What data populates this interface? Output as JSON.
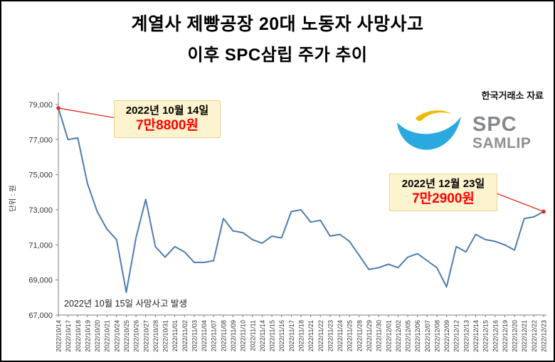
{
  "title": {
    "line1": "계열사 제빵공장 20대 노동자 사망사고",
    "line2": "이후 SPC삼립 주가 추이"
  },
  "source_label": "한국거래소 자료",
  "y_axis_unit": "단위 : 원",
  "event_note": "2022년 10월 15일 사망사고 발생",
  "logo": {
    "line1": "SPC",
    "line2": "SAMLIP"
  },
  "annotations": [
    {
      "date": "2022년 10월 14일",
      "price": "7만8800원",
      "target_index": 0
    },
    {
      "date": "2022년 12월 23일",
      "price": "7만2900원",
      "target_index": 50
    }
  ],
  "colors": {
    "line": "#4e7cb1",
    "arrow_red": "#e02a1f",
    "price_red": "#ff0000",
    "annotation_bg": "#fdf3cf",
    "annotation_border": "#e6d294",
    "axis": "#7f7f7f",
    "tick_text": "#333333",
    "logo_blue": "#2aa9e0",
    "logo_yellow": "#f0b800",
    "logo_gray": "#85888b"
  },
  "chart_data": {
    "type": "line",
    "title": "SPC삼립 주가 추이",
    "xlabel": "",
    "ylabel": "단위 : 원",
    "ylim": [
      67000,
      79000
    ],
    "yticks": [
      67000,
      69000,
      71000,
      73000,
      75000,
      77000,
      79000
    ],
    "grid": false,
    "legend": false,
    "line_color": "#4e7cb1",
    "x": [
      "2022/10/14",
      "2022/10/17",
      "2022/10/18",
      "2022/10/19",
      "2022/10/20",
      "2022/10/21",
      "2022/10/24",
      "2022/10/25",
      "2022/10/26",
      "2022/10/27",
      "2022/10/28",
      "2022/10/31",
      "2022/11/01",
      "2022/11/02",
      "2022/11/03",
      "2022/11/04",
      "2022/11/07",
      "2022/11/08",
      "2022/11/09",
      "2022/11/10",
      "2022/11/11",
      "2022/11/14",
      "2022/11/15",
      "2022/11/16",
      "2022/11/17",
      "2022/11/18",
      "2022/11/21",
      "2022/11/22",
      "2022/11/23",
      "2022/11/24",
      "2022/11/25",
      "2022/11/28",
      "2022/11/29",
      "2022/11/30",
      "2022/12/01",
      "2022/12/02",
      "2022/12/05",
      "2022/12/06",
      "2022/12/07",
      "2022/12/08",
      "2022/12/09",
      "2022/12/12",
      "2022/12/13",
      "2022/12/14",
      "2022/12/15",
      "2022/12/16",
      "2022/12/19",
      "2022/12/20",
      "2022/12/21",
      "2022/12/22",
      "2022/12/23"
    ],
    "values": [
      78800,
      77000,
      77100,
      74500,
      72900,
      71900,
      71300,
      68300,
      71400,
      73600,
      70900,
      70300,
      70900,
      70600,
      70000,
      70000,
      70100,
      72500,
      71800,
      71700,
      71300,
      71100,
      71500,
      71400,
      72900,
      73000,
      72300,
      72400,
      71500,
      71600,
      71200,
      70400,
      69600,
      69700,
      69900,
      69700,
      70300,
      70500,
      70100,
      69700,
      68600,
      70900,
      70600,
      71600,
      71300,
      71200,
      71000,
      70700,
      72500,
      72600,
      72900
    ]
  }
}
